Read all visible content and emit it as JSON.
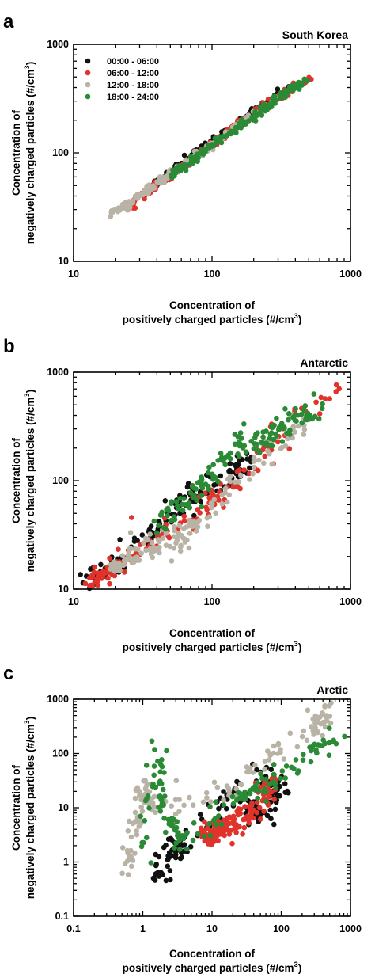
{
  "colors": {
    "00:00 - 06:00": "#111111",
    "06:00 - 12:00": "#e0332b",
    "12:00 - 18:00": "#b9b3a6",
    "18:00 - 24:00": "#2a8a35"
  },
  "legend": {
    "placement": "top-left (panel a)",
    "entries": [
      "00:00 - 06:00",
      "06:00 - 12:00",
      "12:00 - 18:00",
      "18:00 - 24:00"
    ]
  },
  "axis_labels": {
    "x_line1": "Concentration of",
    "x_line2_base": "positively charged particles (#/cm",
    "x_sup": "3",
    "x_close": ")",
    "y_line1": "Concentration of",
    "y_line2_base": "negatively charged particles (#/cm",
    "y_sup": "3",
    "y_close": ")"
  },
  "chart_data": [
    {
      "panel": "a",
      "type": "scatter",
      "title": "South Korea",
      "xscale": "log",
      "yscale": "log",
      "xlim": [
        10,
        1000
      ],
      "ylim": [
        10,
        1000
      ],
      "xticks": [
        "10",
        "100",
        "1000"
      ],
      "yticks": [
        "10",
        "100",
        "1000"
      ],
      "show_legend": true,
      "series": [
        {
          "name": "00:00 - 06:00",
          "trend": [
            [
              35,
              45
            ],
            [
              60,
              80
            ],
            [
              120,
              150
            ],
            [
              220,
              260
            ],
            [
              400,
              420
            ]
          ]
        },
        {
          "name": "06:00 - 12:00",
          "trend": [
            [
              25,
              32
            ],
            [
              45,
              55
            ],
            [
              100,
              120
            ],
            [
              250,
              280
            ],
            [
              520,
              500
            ]
          ]
        },
        {
          "name": "12:00 - 18:00",
          "trend": [
            [
              19,
              28
            ],
            [
              30,
              40
            ],
            [
              55,
              70
            ],
            [
              120,
              140
            ],
            [
              300,
              330
            ]
          ]
        },
        {
          "name": "18:00 - 24:00",
          "trend": [
            [
              50,
              60
            ],
            [
              80,
              95
            ],
            [
              150,
              170
            ],
            [
              280,
              300
            ],
            [
              480,
              470
            ]
          ]
        }
      ]
    },
    {
      "panel": "b",
      "type": "scatter",
      "title": "Antarctic",
      "xscale": "log",
      "yscale": "log",
      "xlim": [
        10,
        1000
      ],
      "ylim": [
        10,
        1000
      ],
      "xticks": [
        "10",
        "100",
        "1000"
      ],
      "yticks": [
        "10",
        "100",
        "1000"
      ],
      "show_legend": false,
      "series": [
        {
          "name": "00:00 - 06:00",
          "trend": [
            [
              12,
              11
            ],
            [
              18,
              15
            ],
            [
              30,
              25
            ],
            [
              60,
              60
            ],
            [
              100,
              90
            ],
            [
              200,
              160
            ]
          ]
        },
        {
          "name": "06:00 - 12:00",
          "trend": [
            [
              13,
              11
            ],
            [
              17,
              13
            ],
            [
              25,
              20
            ],
            [
              60,
              40
            ],
            [
              150,
              110
            ],
            [
              400,
              350
            ],
            [
              880,
              750
            ]
          ]
        },
        {
          "name": "12:00 - 18:00",
          "trend": [
            [
              18,
              14
            ],
            [
              30,
              25
            ],
            [
              55,
              28
            ],
            [
              80,
              40
            ],
            [
              200,
              150
            ],
            [
              500,
              400
            ]
          ]
        },
        {
          "name": "18:00 - 24:00",
          "trend": [
            [
              40,
              40
            ],
            [
              80,
              80
            ],
            [
              150,
              200
            ],
            [
              300,
              300
            ],
            [
              600,
              500
            ]
          ]
        }
      ]
    },
    {
      "panel": "c",
      "type": "scatter",
      "title": "Arctic",
      "xscale": "log",
      "yscale": "log",
      "xlim": [
        0.1,
        1000
      ],
      "ylim": [
        0.1,
        1000
      ],
      "xticks": [
        "0.1",
        "1",
        "10",
        "100",
        "1000"
      ],
      "yticks": [
        "0.1",
        "1",
        "10",
        "100",
        "1000"
      ],
      "show_legend": false,
      "series": [
        {
          "name": "00:00 - 06:00",
          "trend": [
            [
              1.5,
              0.5
            ],
            [
              2.5,
              1.5
            ],
            [
              4,
              2
            ],
            [
              20,
              20
            ],
            [
              50,
              8
            ],
            [
              100,
              20
            ],
            [
              40,
              50
            ]
          ]
        },
        {
          "name": "06:00 - 12:00",
          "trend": [
            [
              8,
              3
            ],
            [
              12,
              4
            ],
            [
              20,
              5
            ],
            [
              40,
              10
            ],
            [
              80,
              30
            ]
          ]
        },
        {
          "name": "12:00 - 18:00",
          "trend": [
            [
              0.6,
              0.5
            ],
            [
              0.8,
              5
            ],
            [
              1,
              30
            ],
            [
              1.5,
              10
            ],
            [
              20,
              20
            ],
            [
              60,
              70
            ],
            [
              300,
              300
            ],
            [
              500,
              600
            ]
          ]
        },
        {
          "name": "18:00 - 24:00",
          "trend": [
            [
              1,
              1.2
            ],
            [
              1.5,
              130
            ],
            [
              2,
              10
            ],
            [
              4,
              2
            ],
            [
              20,
              15
            ],
            [
              50,
              20
            ],
            [
              100,
              40
            ],
            [
              300,
              100
            ],
            [
              700,
              200
            ]
          ]
        }
      ]
    }
  ]
}
